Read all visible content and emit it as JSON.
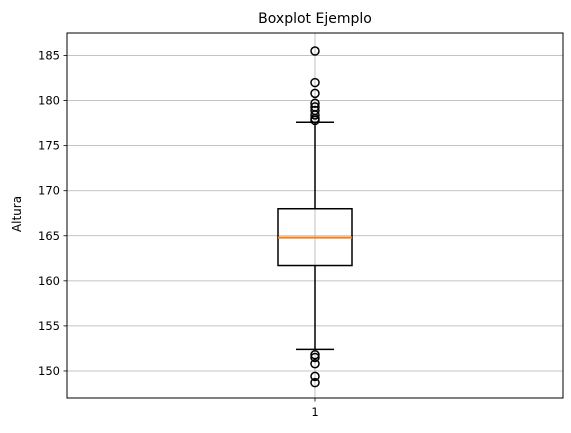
{
  "chart_data": {
    "type": "boxplot",
    "title": "Boxplot Ejemplo",
    "xlabel": "",
    "ylabel": "Altura",
    "categories": [
      "1"
    ],
    "ylim": [
      147,
      187.5
    ],
    "yticks": [
      150,
      155,
      160,
      165,
      170,
      175,
      180,
      185
    ],
    "grid": true,
    "colors": {
      "box": "#000000",
      "median": "#ff7f0e",
      "grid": "#b0b0b0"
    },
    "boxes": [
      {
        "category": "1",
        "q1": 161.7,
        "median": 164.8,
        "q3": 168.0,
        "whisker_low": 152.4,
        "whisker_high": 177.6,
        "outliers": [
          185.5,
          182.0,
          180.8,
          179.7,
          179.3,
          178.9,
          178.4,
          178.0,
          177.8,
          151.8,
          151.5,
          150.8,
          149.4,
          148.7
        ]
      }
    ]
  }
}
